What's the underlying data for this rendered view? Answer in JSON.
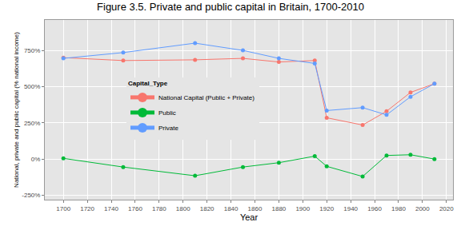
{
  "chart_data": {
    "type": "line",
    "title": "Figure 3.5. Private and public capital in Britain, 1700-2010",
    "x_label": "Year",
    "y_label": "National, private and public capital (% national income)",
    "legend_title": "Capital_Type",
    "legend": "center",
    "grid": true,
    "x": [
      1700,
      1750,
      1810,
      1850,
      1880,
      1910,
      1920,
      1950,
      1970,
      1990,
      2010
    ],
    "series": [
      {
        "name": "National Capital (Public + Private)",
        "color": "#F8766D",
        "marker": "circle",
        "line_style": "solid",
        "values": [
          700,
          680,
          685,
          695,
          670,
          680,
          285,
          235,
          330,
          460,
          520
        ]
      },
      {
        "name": "Public",
        "color": "#00BA38",
        "marker": "circle",
        "line_style": "solid",
        "values": [
          5,
          -55,
          -115,
          -55,
          -25,
          20,
          -50,
          -120,
          25,
          30,
          0
        ]
      },
      {
        "name": "Private",
        "color": "#619CFF",
        "marker": "circle",
        "line_style": "solid",
        "values": [
          695,
          735,
          800,
          750,
          695,
          660,
          335,
          355,
          305,
          430,
          520
        ]
      }
    ],
    "xlim": [
      1684.5,
      2025.5
    ],
    "xticks": [
      1700,
      1720,
      1740,
      1760,
      1780,
      1800,
      1820,
      1840,
      1860,
      1880,
      1900,
      1920,
      1940,
      1960,
      1980,
      2000,
      2020
    ],
    "ylim": [
      -280,
      960
    ],
    "yticks": [
      {
        "value": -250,
        "label": "-250%"
      },
      {
        "value": 0,
        "label": "0%"
      },
      {
        "value": 250,
        "label": "250%"
      },
      {
        "value": 500,
        "label": "500%"
      },
      {
        "value": 750,
        "label": "750%"
      }
    ]
  }
}
